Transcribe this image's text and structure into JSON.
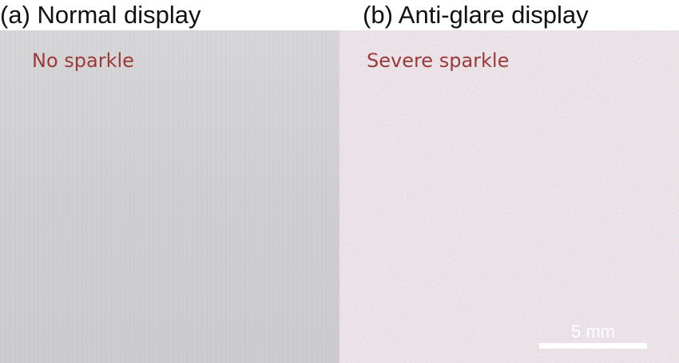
{
  "panels": [
    {
      "caption": "(a) Normal display",
      "label": "No sparkle",
      "surface_color": "#d1d0d2"
    },
    {
      "caption": "(b) Anti-glare display",
      "label": "Severe sparkle",
      "surface_color": "#cfc6cb",
      "scale_bar_label": "5 mm"
    }
  ],
  "colors": {
    "label": "#9b3a38",
    "caption": "#111111",
    "scale_bar": "#ffffff"
  }
}
